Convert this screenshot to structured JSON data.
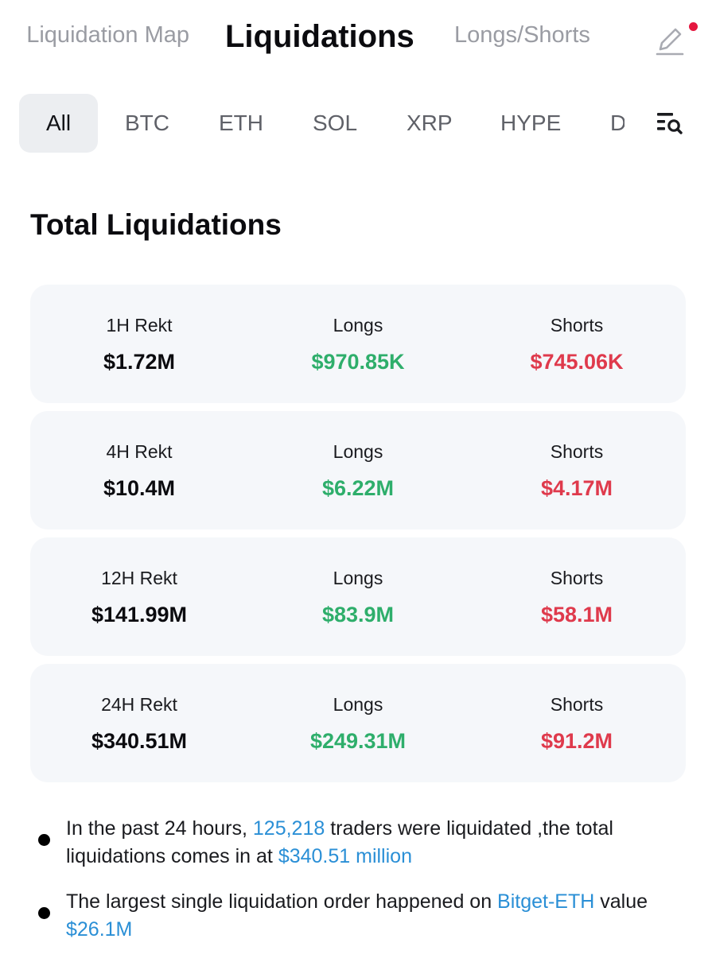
{
  "top_tabs": {
    "liquidation_map": "Liquidation Map",
    "liquidations": "Liquidations",
    "longs_shorts": "Longs/Shorts"
  },
  "header_icons": {
    "edit": "pencil-icon",
    "notification_dot_color": "#e5173f"
  },
  "coin_filter": {
    "coins": [
      "All",
      "BTC",
      "ETH",
      "SOL",
      "XRP",
      "HYPE",
      "D"
    ],
    "selected": "All",
    "search_icon": "filter-search-icon"
  },
  "section": {
    "title": "Total Liquidations"
  },
  "cards": [
    {
      "rekt_label": "1H Rekt",
      "rekt_value": "$1.72M",
      "longs_label": "Longs",
      "longs_value": "$970.85K",
      "shorts_label": "Shorts",
      "shorts_value": "$745.06K"
    },
    {
      "rekt_label": "4H Rekt",
      "rekt_value": "$10.4M",
      "longs_label": "Longs",
      "longs_value": "$6.22M",
      "shorts_label": "Shorts",
      "shorts_value": "$4.17M"
    },
    {
      "rekt_label": "12H Rekt",
      "rekt_value": "$141.99M",
      "longs_label": "Longs",
      "longs_value": "$83.9M",
      "shorts_label": "Shorts",
      "shorts_value": "$58.1M"
    },
    {
      "rekt_label": "24H Rekt",
      "rekt_value": "$340.51M",
      "longs_label": "Longs",
      "longs_value": "$249.31M",
      "shorts_label": "Shorts",
      "shorts_value": "$91.2M"
    }
  ],
  "notes": {
    "n1": {
      "prefix": "In the past 24 hours, ",
      "traders": "125,218",
      "middle": " traders were liquidated ,the total liquidations comes in at ",
      "total": "$340.51 million"
    },
    "n2": {
      "prefix": "The largest single liquidation order happened on ",
      "exchange": "Bitget-ETH",
      "middle": " value ",
      "value": "$26.1M"
    }
  },
  "colors": {
    "longs_green": "#2eae6b",
    "shorts_red": "#df3a4c",
    "highlight_blue": "#2a8fd6",
    "card_bg": "#f5f7fa",
    "active_tab_bg": "#eceef1"
  }
}
